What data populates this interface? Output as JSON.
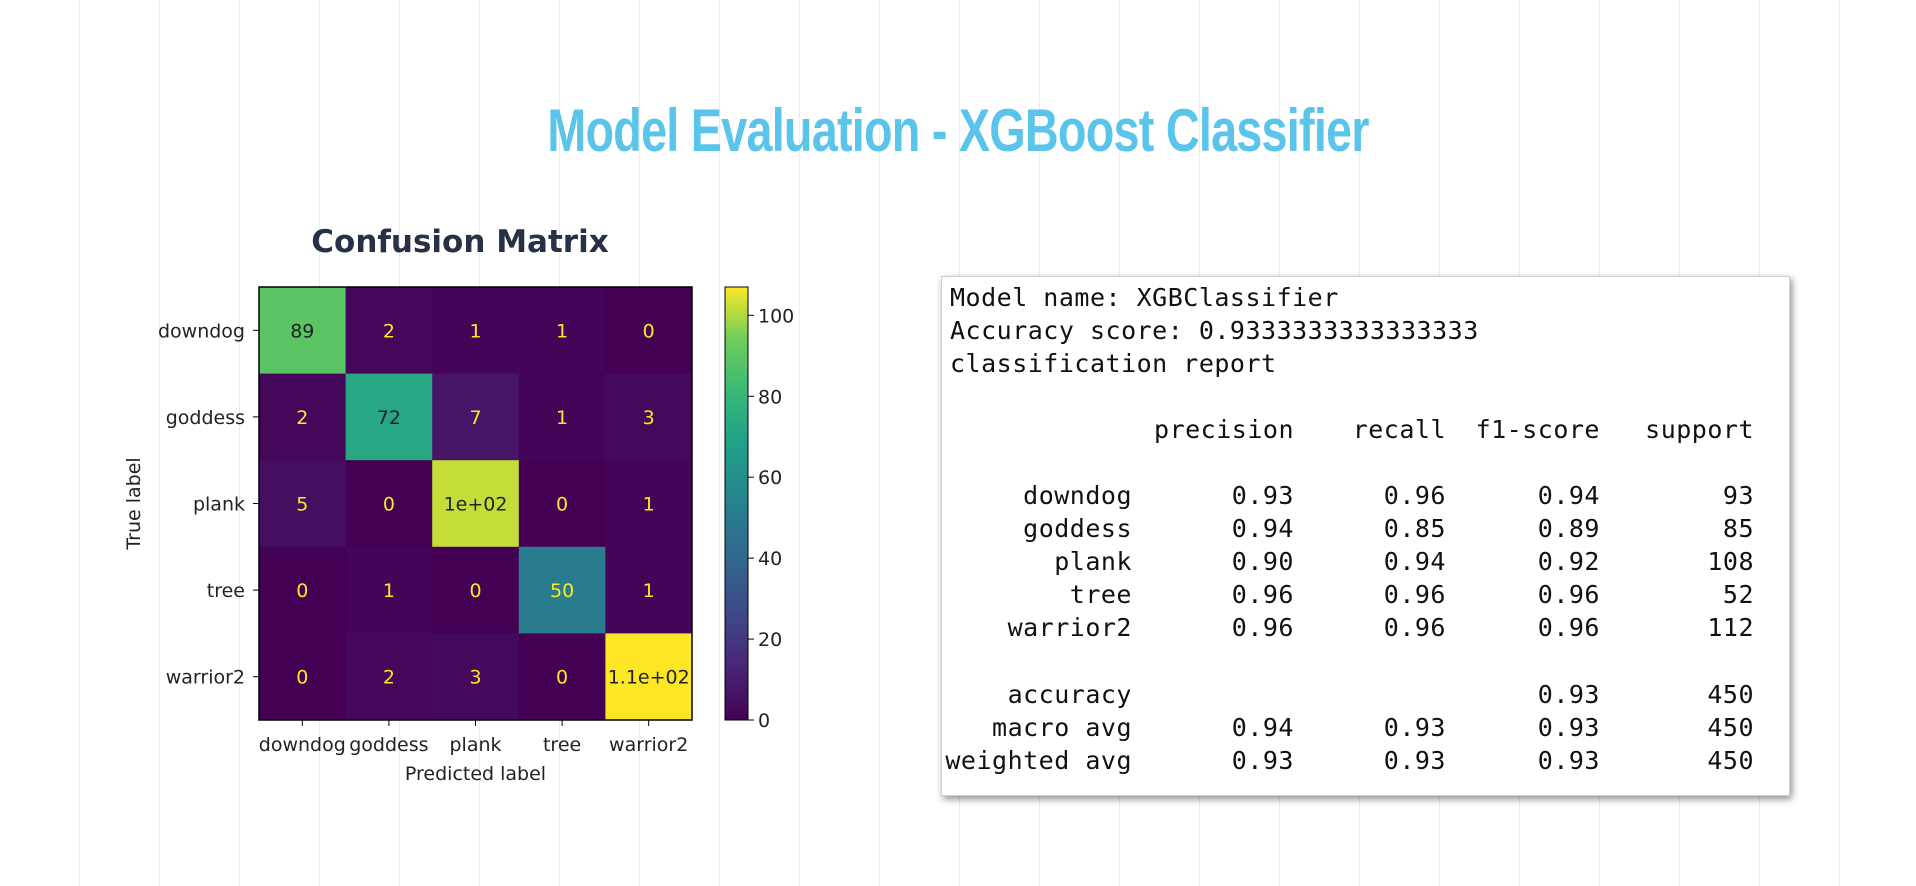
{
  "page": {
    "title": "Model Evaluation - XGBoost Classifier",
    "subtitle": "Confusion Matrix"
  },
  "chart_data": {
    "type": "heatmap",
    "title": "",
    "xlabel": "Predicted label",
    "ylabel": "True label",
    "x_categories": [
      "downdog",
      "goddess",
      "plank",
      "tree",
      "warrior2"
    ],
    "y_categories": [
      "downdog",
      "goddess",
      "plank",
      "tree",
      "warrior2"
    ],
    "values": [
      [
        89,
        2,
        1,
        1,
        0
      ],
      [
        2,
        72,
        7,
        1,
        3
      ],
      [
        5,
        0,
        102,
        0,
        1
      ],
      [
        0,
        1,
        0,
        50,
        1
      ],
      [
        0,
        2,
        3,
        0,
        107
      ]
    ],
    "cell_labels": [
      [
        "89",
        "2",
        "1",
        "1",
        "0"
      ],
      [
        "2",
        "72",
        "7",
        "1",
        "3"
      ],
      [
        "5",
        "0",
        "1e+02",
        "0",
        "1"
      ],
      [
        "0",
        "1",
        "0",
        "50",
        "1"
      ],
      [
        "0",
        "2",
        "3",
        "0",
        "1.1e+02"
      ]
    ],
    "colormap": "viridis",
    "colorbar": {
      "range": [
        0,
        107
      ],
      "ticks": [
        0,
        20,
        40,
        60,
        80,
        100
      ]
    }
  },
  "report": {
    "model_line": "Model name: XGBClassifier",
    "accuracy_line": "Accuracy score: 0.9333333333333333",
    "report_title": "classification report",
    "headers": [
      "precision",
      "recall",
      "f1-score",
      "support"
    ],
    "rows": [
      {
        "label": "downdog",
        "precision": "0.93",
        "recall": "0.96",
        "f1": "0.94",
        "support": "93"
      },
      {
        "label": "goddess",
        "precision": "0.94",
        "recall": "0.85",
        "f1": "0.89",
        "support": "85"
      },
      {
        "label": "plank",
        "precision": "0.90",
        "recall": "0.94",
        "f1": "0.92",
        "support": "108"
      },
      {
        "label": "tree",
        "precision": "0.96",
        "recall": "0.96",
        "f1": "0.96",
        "support": "52"
      },
      {
        "label": "warrior2",
        "precision": "0.96",
        "recall": "0.96",
        "f1": "0.96",
        "support": "112"
      }
    ],
    "summary": [
      {
        "label": "accuracy",
        "precision": "",
        "recall": "",
        "f1": "0.93",
        "support": "450"
      },
      {
        "label": "macro avg",
        "precision": "0.94",
        "recall": "0.93",
        "f1": "0.93",
        "support": "450"
      },
      {
        "label": "weighted avg",
        "precision": "0.93",
        "recall": "0.93",
        "f1": "0.93",
        "support": "450"
      }
    ]
  }
}
